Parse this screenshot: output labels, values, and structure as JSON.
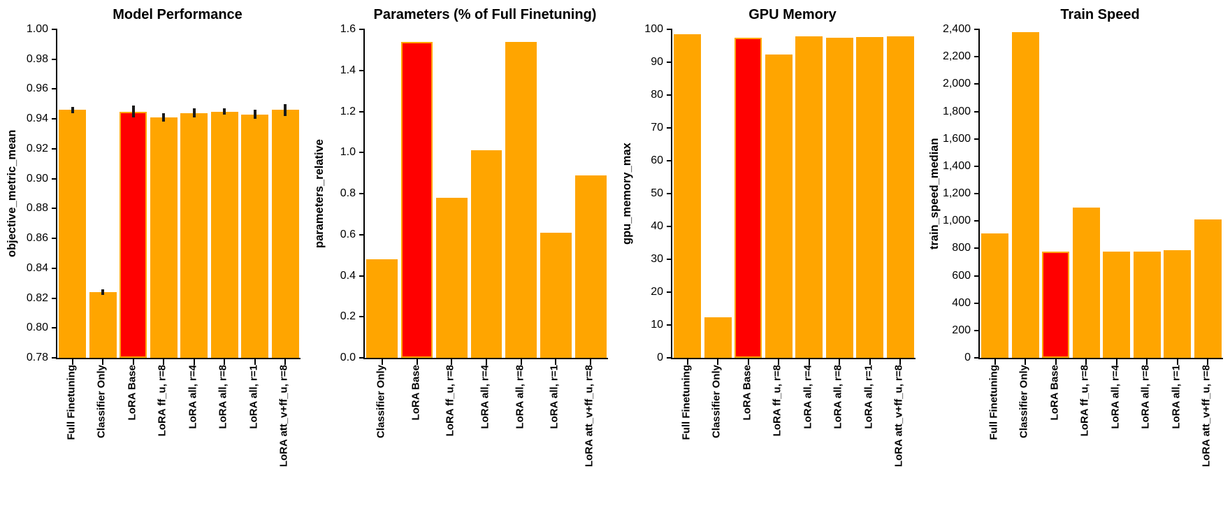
{
  "colors": {
    "bar": "#FFA500",
    "highlight": "#FF0000",
    "highlight_edge": "#FFA500",
    "error_bar": "#1a1a1a",
    "axis": "#000000",
    "background": "#ffffff",
    "text": "#000000"
  },
  "chart_data": [
    {
      "type": "bar",
      "title": "Model Performance",
      "ylabel": "objective_metric_mean",
      "categories": [
        "Full Finetuning",
        "Classifier Only",
        "LoRA Base",
        "LoRA ff_u, r=8",
        "LoRA all, r=4",
        "LoRA all, r=8",
        "LoRA all, r=1",
        "LoRA att_v+ff_u, r=8"
      ],
      "values": [
        0.946,
        0.824,
        0.945,
        0.941,
        0.944,
        0.945,
        0.943,
        0.946
      ],
      "errors": [
        0.002,
        0.002,
        0.004,
        0.003,
        0.003,
        0.002,
        0.003,
        0.004
      ],
      "highlight_index": 2,
      "highlight_category": "LoRA Base",
      "ylim": [
        0.78,
        1.0
      ],
      "ytick_step": 0.02,
      "ytick_decimals": 2,
      "ytick_comma": false,
      "grid": false,
      "legend": null
    },
    {
      "type": "bar",
      "title": "Parameters (% of Full Finetuning)",
      "ylabel": "parameters_relative",
      "categories": [
        "Classifier Only",
        "LoRA Base",
        "LoRA ff_u, r=8",
        "LoRA all, r=4",
        "LoRA all, r=8",
        "LoRA all, r=1",
        "LoRA att_v+ff_u, r=8"
      ],
      "values": [
        0.48,
        1.54,
        0.78,
        1.01,
        1.54,
        0.61,
        0.89
      ],
      "errors": null,
      "highlight_index": 1,
      "highlight_category": "LoRA Base",
      "ylim": [
        0.0,
        1.6
      ],
      "ytick_step": 0.2,
      "ytick_decimals": 1,
      "ytick_comma": false,
      "grid": false,
      "legend": null
    },
    {
      "type": "bar",
      "title": "GPU Memory",
      "ylabel": "gpu_memory_max",
      "categories": [
        "Full Finetuning",
        "Classifier Only",
        "LoRA Base",
        "LoRA ff_u, r=8",
        "LoRA all, r=4",
        "LoRA all, r=8",
        "LoRA all, r=1",
        "LoRA att_v+ff_u, r=8"
      ],
      "values": [
        98.5,
        12.3,
        97.4,
        92.3,
        97.9,
        97.4,
        97.7,
        97.8
      ],
      "errors": null,
      "highlight_index": 2,
      "highlight_category": "LoRA Base",
      "ylim": [
        0,
        100
      ],
      "ytick_step": 10,
      "ytick_decimals": 0,
      "ytick_comma": false,
      "grid": false,
      "legend": null
    },
    {
      "type": "bar",
      "title": "Train Speed",
      "ylabel": "train_speed_median",
      "categories": [
        "Full Finetuning",
        "Classifier Only",
        "LoRA Base",
        "LoRA ff_u, r=8",
        "LoRA all, r=4",
        "LoRA all, r=8",
        "LoRA all, r=1",
        "LoRA att_v+ff_u, r=8"
      ],
      "values": [
        910,
        2380,
        775,
        1100,
        778,
        778,
        785,
        1010
      ],
      "errors": null,
      "highlight_index": 2,
      "highlight_category": "LoRA Base",
      "ylim": [
        0,
        2400
      ],
      "ytick_step": 200,
      "ytick_decimals": 0,
      "ytick_comma": true,
      "grid": false,
      "legend": null
    }
  ]
}
